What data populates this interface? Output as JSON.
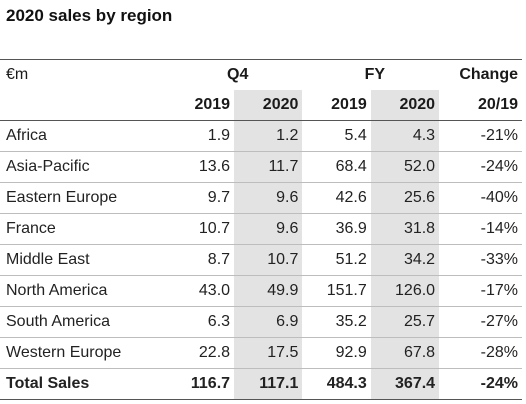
{
  "title": "2020 sales by region",
  "header": {
    "unit": "€m",
    "q4": "Q4",
    "fy": "FY",
    "change": "Change",
    "cols": [
      "2019",
      "2020",
      "2019",
      "2020",
      "20/19"
    ]
  },
  "rows": [
    {
      "region": "Africa",
      "q4_2019": "1.9",
      "q4_2020": "1.2",
      "fy_2019": "5.4",
      "fy_2020": "4.3",
      "change": "-21%"
    },
    {
      "region": "Asia-Pacific",
      "q4_2019": "13.6",
      "q4_2020": "11.7",
      "fy_2019": "68.4",
      "fy_2020": "52.0",
      "change": "-24%"
    },
    {
      "region": "Eastern Europe",
      "q4_2019": "9.7",
      "q4_2020": "9.6",
      "fy_2019": "42.6",
      "fy_2020": "25.6",
      "change": "-40%"
    },
    {
      "region": "France",
      "q4_2019": "10.7",
      "q4_2020": "9.6",
      "fy_2019": "36.9",
      "fy_2020": "31.8",
      "change": "-14%"
    },
    {
      "region": "Middle East",
      "q4_2019": "8.7",
      "q4_2020": "10.7",
      "fy_2019": "51.2",
      "fy_2020": "34.2",
      "change": "-33%"
    },
    {
      "region": "North America",
      "q4_2019": "43.0",
      "q4_2020": "49.9",
      "fy_2019": "151.7",
      "fy_2020": "126.0",
      "change": "-17%"
    },
    {
      "region": "South America",
      "q4_2019": "6.3",
      "q4_2020": "6.9",
      "fy_2019": "35.2",
      "fy_2020": "25.7",
      "change": "-27%"
    },
    {
      "region": "Western Europe",
      "q4_2019": "22.8",
      "q4_2020": "17.5",
      "fy_2019": "92.9",
      "fy_2020": "67.8",
      "change": "-28%"
    }
  ],
  "total": {
    "region": "Total Sales",
    "q4_2019": "116.7",
    "q4_2020": "117.1",
    "fy_2019": "484.3",
    "fy_2020": "367.4",
    "change": "-24%"
  },
  "colors": {
    "shade": "#e3e3e3"
  }
}
